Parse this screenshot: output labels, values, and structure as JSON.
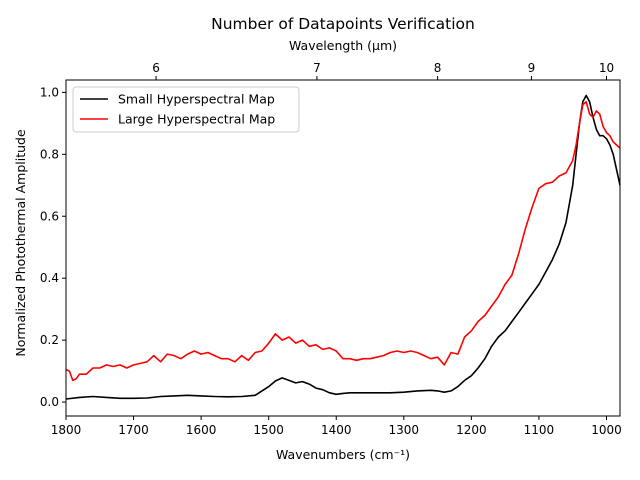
{
  "chart_data": {
    "type": "line",
    "title": "Number of Datapoints Verification",
    "xlabel": "Wavenumbers (cm⁻¹)",
    "ylabel": "Normalized Photothermal Amplitude",
    "xlim": [
      1800,
      980
    ],
    "ylim": [
      -0.045,
      1.04
    ],
    "x_ticks": [
      1800,
      1700,
      1600,
      1500,
      1400,
      1300,
      1200,
      1100,
      1000
    ],
    "y_ticks": [
      0.0,
      0.2,
      0.4,
      0.6,
      0.8,
      1.0
    ],
    "top_axis": {
      "label": "Wavelength (µm)",
      "ticks": [
        6,
        7,
        8,
        9,
        10
      ],
      "tick_wavenumbers": [
        1666.7,
        1428.6,
        1250,
        1111.1,
        1000
      ]
    },
    "legend": {
      "placement": "top-left"
    },
    "series": [
      {
        "name": "Small Hyperspectral Map",
        "color": "#000000",
        "x": [
          1800,
          1780,
          1760,
          1740,
          1720,
          1700,
          1680,
          1660,
          1640,
          1620,
          1600,
          1580,
          1560,
          1540,
          1520,
          1500,
          1490,
          1480,
          1470,
          1460,
          1450,
          1440,
          1430,
          1420,
          1410,
          1400,
          1390,
          1380,
          1360,
          1340,
          1320,
          1300,
          1280,
          1260,
          1250,
          1240,
          1230,
          1220,
          1210,
          1200,
          1190,
          1180,
          1170,
          1160,
          1150,
          1140,
          1130,
          1120,
          1110,
          1100,
          1090,
          1080,
          1070,
          1060,
          1050,
          1045,
          1040,
          1035,
          1030,
          1025,
          1020,
          1015,
          1010,
          1005,
          1000,
          995,
          990,
          985,
          980
        ],
        "values": [
          0.01,
          0.015,
          0.018,
          0.015,
          0.012,
          0.012,
          0.013,
          0.018,
          0.02,
          0.022,
          0.02,
          0.018,
          0.017,
          0.018,
          0.022,
          0.05,
          0.068,
          0.078,
          0.07,
          0.062,
          0.066,
          0.058,
          0.045,
          0.04,
          0.03,
          0.025,
          0.028,
          0.03,
          0.03,
          0.03,
          0.03,
          0.032,
          0.036,
          0.038,
          0.036,
          0.032,
          0.036,
          0.05,
          0.07,
          0.085,
          0.11,
          0.14,
          0.18,
          0.21,
          0.23,
          0.26,
          0.29,
          0.32,
          0.35,
          0.38,
          0.42,
          0.46,
          0.51,
          0.58,
          0.7,
          0.8,
          0.9,
          0.97,
          0.99,
          0.97,
          0.92,
          0.88,
          0.86,
          0.86,
          0.85,
          0.83,
          0.8,
          0.75,
          0.7
        ]
      },
      {
        "name": "Large Hyperspectral Map",
        "color": "#ff0000",
        "x": [
          1800,
          1795,
          1790,
          1785,
          1780,
          1770,
          1760,
          1750,
          1740,
          1730,
          1720,
          1710,
          1700,
          1690,
          1680,
          1670,
          1660,
          1650,
          1640,
          1630,
          1620,
          1610,
          1600,
          1590,
          1580,
          1570,
          1560,
          1550,
          1540,
          1530,
          1520,
          1510,
          1500,
          1490,
          1480,
          1470,
          1460,
          1450,
          1440,
          1430,
          1420,
          1410,
          1400,
          1390,
          1380,
          1370,
          1360,
          1350,
          1340,
          1330,
          1320,
          1310,
          1300,
          1290,
          1280,
          1270,
          1260,
          1250,
          1240,
          1230,
          1220,
          1210,
          1200,
          1190,
          1180,
          1170,
          1160,
          1150,
          1140,
          1130,
          1120,
          1110,
          1100,
          1090,
          1080,
          1070,
          1060,
          1050,
          1045,
          1040,
          1035,
          1030,
          1025,
          1020,
          1015,
          1010,
          1005,
          1000,
          995,
          990,
          985,
          980
        ],
        "values": [
          0.105,
          0.1,
          0.07,
          0.075,
          0.09,
          0.09,
          0.11,
          0.11,
          0.12,
          0.115,
          0.12,
          0.11,
          0.12,
          0.125,
          0.13,
          0.15,
          0.13,
          0.155,
          0.15,
          0.14,
          0.155,
          0.165,
          0.155,
          0.16,
          0.15,
          0.14,
          0.14,
          0.13,
          0.15,
          0.135,
          0.16,
          0.165,
          0.19,
          0.22,
          0.2,
          0.21,
          0.19,
          0.2,
          0.18,
          0.185,
          0.17,
          0.175,
          0.165,
          0.14,
          0.14,
          0.135,
          0.14,
          0.14,
          0.145,
          0.15,
          0.16,
          0.165,
          0.16,
          0.165,
          0.16,
          0.15,
          0.14,
          0.145,
          0.12,
          0.16,
          0.155,
          0.21,
          0.23,
          0.26,
          0.28,
          0.31,
          0.34,
          0.38,
          0.41,
          0.48,
          0.56,
          0.63,
          0.69,
          0.705,
          0.71,
          0.73,
          0.74,
          0.78,
          0.83,
          0.9,
          0.96,
          0.97,
          0.93,
          0.92,
          0.94,
          0.93,
          0.89,
          0.87,
          0.86,
          0.84,
          0.83,
          0.82
        ]
      }
    ]
  }
}
